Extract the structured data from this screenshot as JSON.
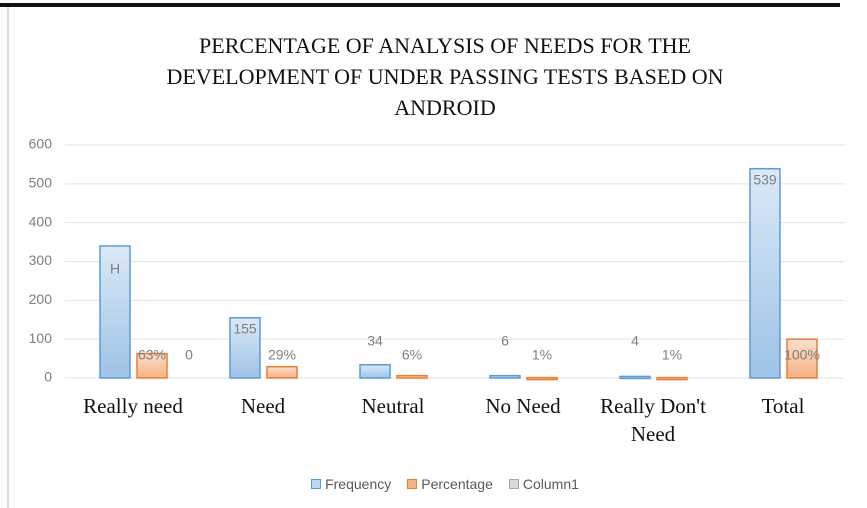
{
  "chart_data": {
    "type": "bar",
    "title": "PERCENTAGE OF ANALYSIS OF NEEDS FOR THE DEVELOPMENT OF UNDER PASSING TESTS BASED ON ANDROID",
    "categories": [
      "Really need",
      "Need",
      "Neutral",
      "No Need",
      "Really Don't Need",
      "Total"
    ],
    "series": [
      {
        "name": "Frequency",
        "color": "#5b9bd5",
        "values": [
          340,
          155,
          34,
          6,
          4,
          539
        ],
        "value_labels": [
          null,
          "155",
          "34",
          "6",
          "4",
          "539"
        ]
      },
      {
        "name": "Percentage",
        "color": "#ed7d31",
        "values": [
          63,
          29,
          6,
          1,
          1,
          100
        ],
        "value_labels": [
          "63%",
          "29%",
          "6%",
          "1%",
          "1%",
          "100%"
        ]
      },
      {
        "name": "Column1",
        "color": "#a5a5a5",
        "values": [
          0,
          null,
          null,
          null,
          null,
          null
        ]
      }
    ],
    "annotations": [
      {
        "text": "H"
      }
    ],
    "ylim": [
      0,
      600
    ],
    "yticks": [
      0,
      100,
      200,
      300,
      400,
      500,
      600
    ],
    "grid": true,
    "legend": "bottom"
  }
}
